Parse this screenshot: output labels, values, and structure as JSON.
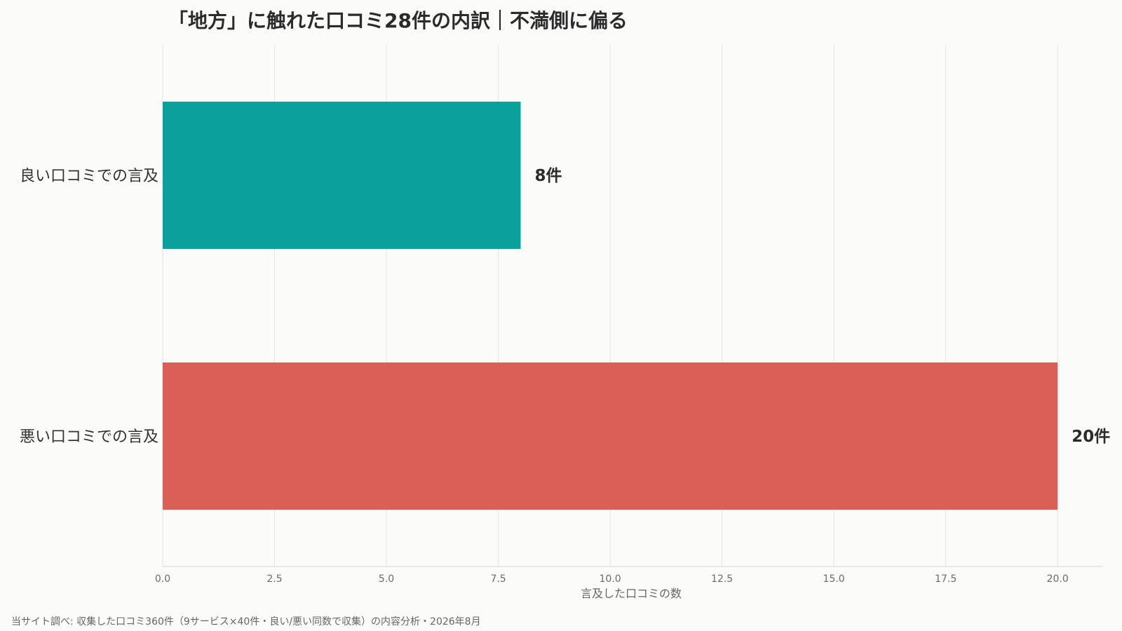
{
  "chart_data": {
    "type": "bar",
    "orientation": "horizontal",
    "title": "「地方」に触れた口コミ28件の内訳｜不満側に偏る",
    "categories": [
      "良い口コミでの言及",
      "悪い口コミでの言及"
    ],
    "values": [
      8,
      20
    ],
    "value_labels": [
      "8件",
      "20件"
    ],
    "colors": [
      "#0ba09b",
      "#db5f57"
    ],
    "xlabel": "言及した口コミの数",
    "ylabel": "",
    "xlim": [
      0,
      21
    ],
    "xticks": [
      0,
      2.5,
      5,
      7.5,
      10,
      12.5,
      15,
      17.5,
      20
    ],
    "xtick_labels": [
      "0.0",
      "2.5",
      "5.0",
      "7.5",
      "10.0",
      "12.5",
      "15.0",
      "17.5",
      "20.0"
    ],
    "grid": "vertical",
    "legend": "none"
  },
  "source_note": "当サイト調べ: 収集した口コミ360件（9サービス×40件・良い/悪い同数で収集）の内容分析・2026年8月"
}
